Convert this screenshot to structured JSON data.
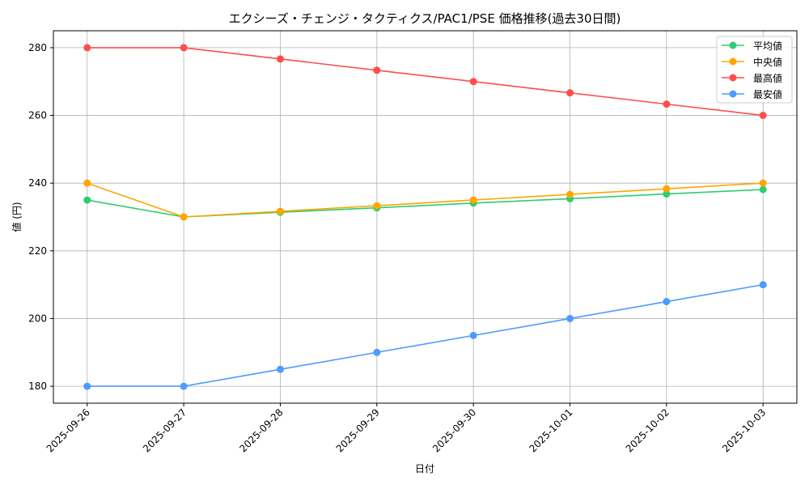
{
  "chart_data": {
    "type": "line",
    "title": "エクシーズ・チェンジ・タクティクス/PAC1/PSE 価格推移(過去30日間)",
    "xlabel": "日付",
    "ylabel": "値 (円)",
    "categories": [
      "2025-09-26",
      "2025-09-27",
      "2025-09-28",
      "2025-09-29",
      "2025-09-30",
      "2025-10-01",
      "2025-10-02",
      "2025-10-03"
    ],
    "ylim": [
      175,
      285
    ],
    "yticks": [
      180,
      200,
      220,
      240,
      260,
      280
    ],
    "grid": true,
    "legend": "top-right",
    "series": [
      {
        "name": "平均値",
        "color": "#2ecc71",
        "values": [
          235,
          230,
          231.4,
          232.7,
          234.1,
          235.4,
          236.8,
          238.1
        ]
      },
      {
        "name": "中央値",
        "color": "#ffa500",
        "values": [
          240,
          230,
          231.67,
          233.33,
          235,
          236.67,
          238.33,
          240
        ]
      },
      {
        "name": "最高値",
        "color": "#ff4d4d",
        "values": [
          280,
          280,
          276.67,
          273.33,
          270,
          266.67,
          263.33,
          260
        ]
      },
      {
        "name": "最安値",
        "color": "#4d9bff",
        "values": [
          180,
          180,
          185,
          190,
          195,
          200,
          205,
          210
        ]
      }
    ]
  }
}
